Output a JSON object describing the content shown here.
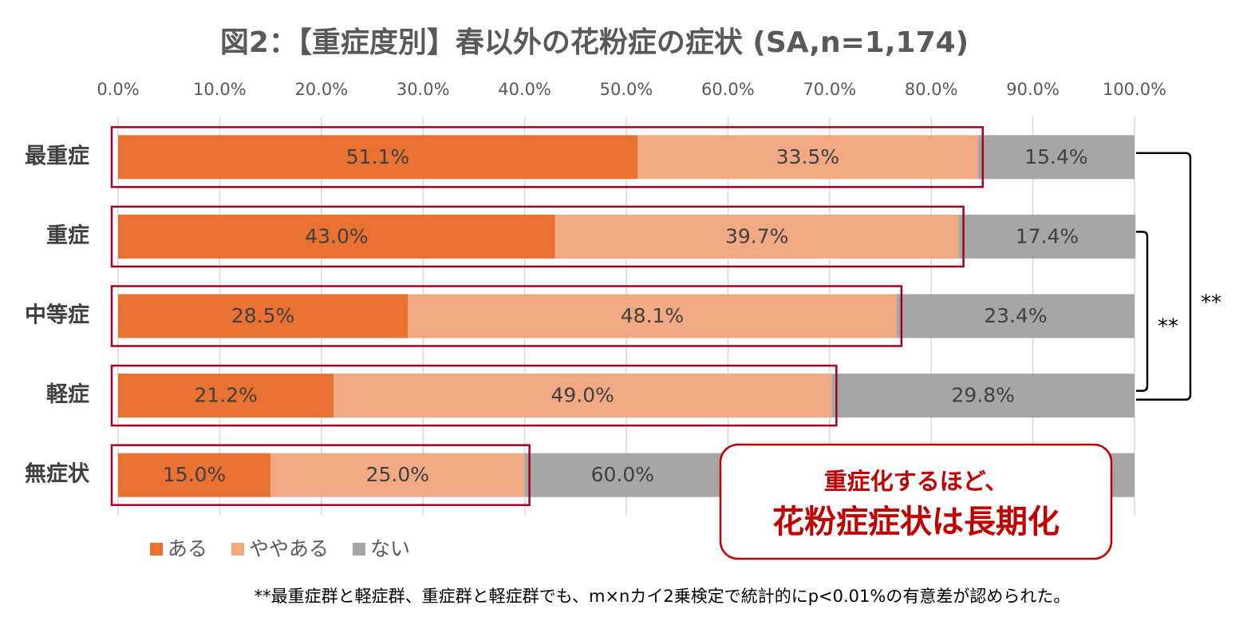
{
  "chart_data": {
    "type": "stacked-bar-horizontal",
    "title": "図2：【重症度別】春以外の花粉症の症状 (SA,n=1,174)",
    "categories": [
      "最重症",
      "重症",
      "中等症",
      "軽症",
      "無症状"
    ],
    "series": [
      {
        "name": "ある",
        "color": "#e97132",
        "values": [
          51.1,
          43.0,
          28.5,
          21.2,
          15.0
        ],
        "value_labels": [
          "51.1%",
          "43.0%",
          "28.5%",
          "21.2%",
          "15.0%"
        ]
      },
      {
        "name": "ややある",
        "color": "#f1a983",
        "values": [
          33.5,
          39.7,
          48.1,
          49.0,
          25.0
        ],
        "value_labels": [
          "33.5%",
          "39.7%",
          "48.1%",
          "49.0%",
          "25.0%"
        ]
      },
      {
        "name": "ない",
        "color": "#a6a6a6",
        "values": [
          15.4,
          17.4,
          23.4,
          29.8,
          60.0
        ],
        "value_labels": [
          "15.4%",
          "17.4%",
          "23.4%",
          "29.8%",
          "60.0%"
        ]
      }
    ],
    "xlim": [
      0,
      100
    ],
    "xticks": [
      {
        "value": 0,
        "label": "0.0%"
      },
      {
        "value": 10,
        "label": "10.0%"
      },
      {
        "value": 20,
        "label": "20.0%"
      },
      {
        "value": 30,
        "label": "30.0%"
      },
      {
        "value": 40,
        "label": "40.0%"
      },
      {
        "value": 50,
        "label": "50.0%"
      },
      {
        "value": 60,
        "label": "60.0%"
      },
      {
        "value": 70,
        "label": "70.0%"
      },
      {
        "value": 80,
        "label": "80.0%"
      },
      {
        "value": 90,
        "label": "90.0%"
      },
      {
        "value": 100,
        "label": "100.0%"
      }
    ],
    "grid": true,
    "significance": [
      "**",
      "**"
    ],
    "callout": [
      "重症化するほど、",
      "花粉症症状は長期化"
    ],
    "footnote": "**最重症群と軽症群、重症群と軽症群でも、m×nカイ2乗検定で統計的にp<0.01%の有意差が認められた。"
  }
}
